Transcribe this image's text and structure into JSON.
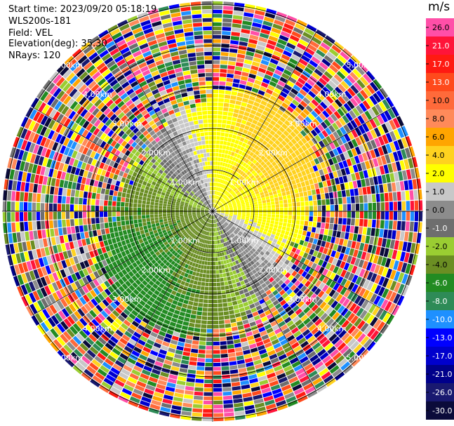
{
  "info": {
    "start_time": "Start time: 2023/09/20 05:18:19",
    "site": "WLS200s-181",
    "field": "Field: VEL",
    "elevation": "Elevation(deg): 35.30",
    "nrays": "NRays: 120"
  },
  "colorbar": {
    "unit": "m/s",
    "levels": [
      {
        "value": 26.0,
        "label": "26.0",
        "color": "#ff4fa8"
      },
      {
        "value": 21.0,
        "label": "21.0",
        "color": "#ff1439"
      },
      {
        "value": 17.0,
        "label": "17.0",
        "color": "#ff1a12"
      },
      {
        "value": 13.0,
        "label": "13.0",
        "color": "#ff4a1c"
      },
      {
        "value": 10.0,
        "label": "10.0",
        "color": "#ff6a3a"
      },
      {
        "value": 8.0,
        "label": "8.0",
        "color": "#ff8a5a"
      },
      {
        "value": 6.0,
        "label": "6.0",
        "color": "#ffa500"
      },
      {
        "value": 4.0,
        "label": "4.0",
        "color": "#ffd21f"
      },
      {
        "value": 2.0,
        "label": "2.0",
        "color": "#ffff00"
      },
      {
        "value": 1.0,
        "label": "1.0",
        "color": "#c8c8c8"
      },
      {
        "value": 0.0,
        "label": "0.0",
        "color": "#8c8c8c"
      },
      {
        "value": -1.0,
        "label": "-1.0",
        "color": "#6e6e6e"
      },
      {
        "value": -2.0,
        "label": "-2.0",
        "color": "#9acd32"
      },
      {
        "value": -4.0,
        "label": "-4.0",
        "color": "#6b8e23"
      },
      {
        "value": -6.0,
        "label": "-6.0",
        "color": "#228b22"
      },
      {
        "value": -8.0,
        "label": "-8.0",
        "color": "#2e8b57"
      },
      {
        "value": -10.0,
        "label": "-10.0",
        "color": "#1e90ff"
      },
      {
        "value": -13.0,
        "label": "-13.0",
        "color": "#0000ff"
      },
      {
        "value": -17.0,
        "label": "-17.0",
        "color": "#0000cd"
      },
      {
        "value": -21.0,
        "label": "-21.0",
        "color": "#00008b"
      },
      {
        "value": -26.0,
        "label": "-26.0",
        "color": "#191970"
      },
      {
        "value": -30.0,
        "label": "-30.0",
        "color": "#0b0b3a"
      }
    ]
  },
  "range_rings": {
    "labels": [
      "1.00km",
      "2.00km",
      "3.00km",
      "4.00km",
      "5.00km"
    ]
  }
}
